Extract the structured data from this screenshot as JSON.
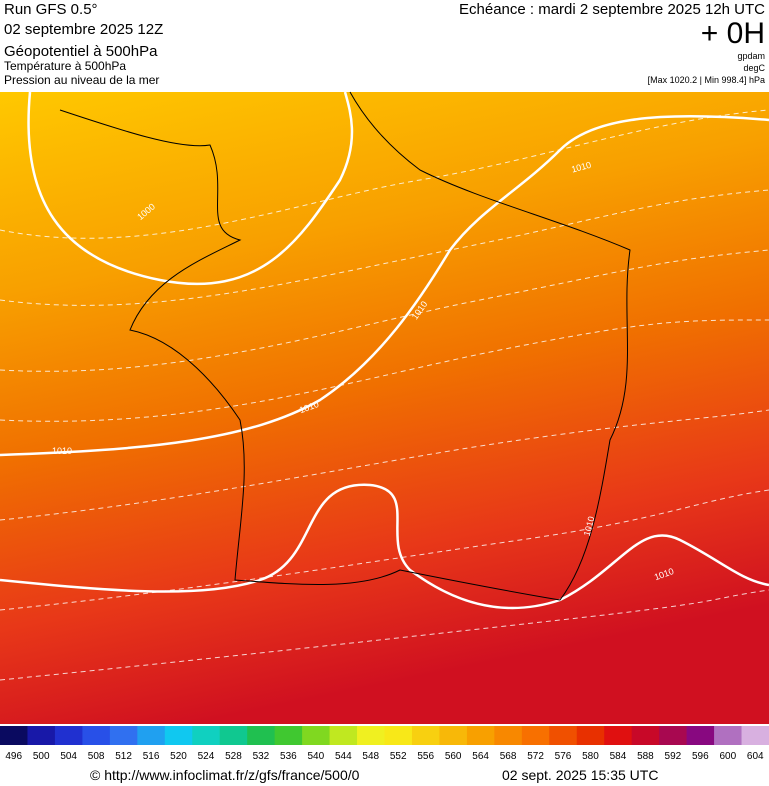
{
  "header": {
    "run": "Run GFS 0.5°",
    "date": "02 septembre 2025 12Z",
    "echeance": "Echéance : mardi 2 septembre 2025 12h UTC",
    "offset": "+ 0H",
    "layers": [
      "Géopotentiel à 500hPa",
      "Température à 500hPa",
      "Pression au niveau de la mer"
    ],
    "units": [
      "gpdam",
      "degC"
    ],
    "pressure_range": "[Max 1020.2 | Min 998.4] hPa"
  },
  "map": {
    "isobar_labels": [
      "1010",
      "1000",
      "1010",
      "1010",
      "1010",
      "1010",
      "1010"
    ]
  },
  "colorbar": {
    "labels": [
      496,
      500,
      504,
      508,
      512,
      516,
      520,
      524,
      528,
      532,
      536,
      540,
      544,
      548,
      552,
      556,
      560,
      564,
      568,
      572,
      576,
      580,
      584,
      588,
      592,
      596,
      600,
      604
    ],
    "colors": [
      "#0a0a60",
      "#1818a8",
      "#2030d0",
      "#2850e8",
      "#3070f0",
      "#20a0f0",
      "#10c8f0",
      "#10d0c0",
      "#10c890",
      "#20c050",
      "#40c830",
      "#80d820",
      "#c0e820",
      "#f0f020",
      "#f8e818",
      "#f8d010",
      "#f8b808",
      "#f8a000",
      "#f88800",
      "#f87000",
      "#f05000",
      "#e83000",
      "#e01010",
      "#c80828",
      "#a80850",
      "#880880",
      "#b070c0",
      "#d8b0e0"
    ]
  },
  "footer": {
    "credit": "© http://www.infoclimat.fr/z/gfs/france/500/0",
    "timestamp": "02 sept. 2025 15:35 UTC"
  }
}
